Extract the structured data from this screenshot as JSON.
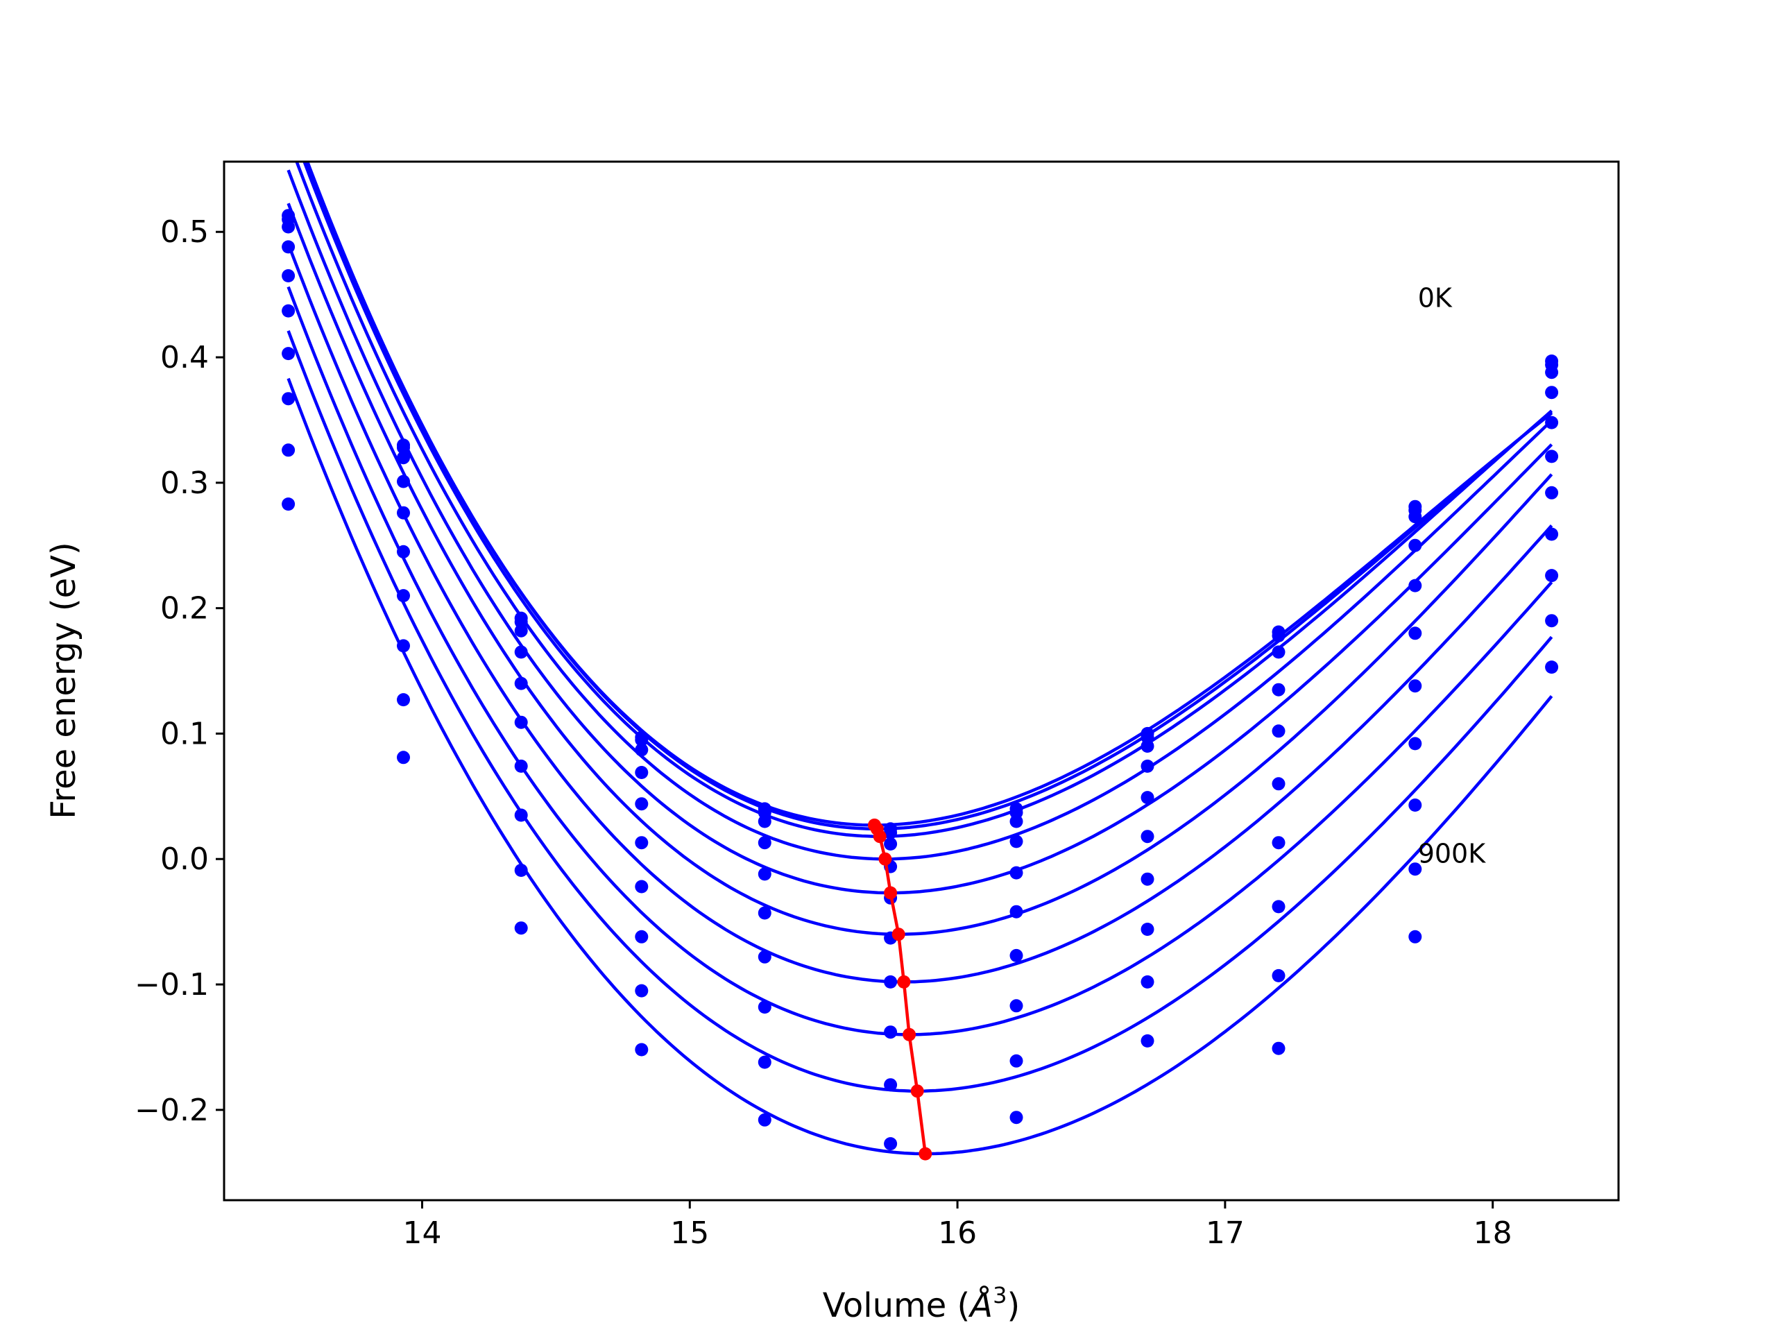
{
  "chart_data": {
    "type": "scatter",
    "title": "",
    "xlabel": "Volume (",
    "xlabel_symbol": "Å",
    "xlabel_exp": "3",
    "xlabel_close": ")",
    "ylabel": "Free energy (eV)",
    "xlim": [
      13.26,
      18.47
    ],
    "ylim": [
      -0.272,
      0.556
    ],
    "xticks": [
      14,
      15,
      16,
      17,
      18
    ],
    "xtick_labels": [
      "14",
      "15",
      "16",
      "17",
      "18"
    ],
    "yticks": [
      -0.2,
      -0.1,
      0.0,
      0.1,
      0.2,
      0.3,
      0.4,
      0.5
    ],
    "ytick_labels": [
      "−0.2",
      "−0.1",
      "0.0",
      "0.1",
      "0.2",
      "0.3",
      "0.4",
      "0.5"
    ],
    "grid": false,
    "legend": "none",
    "point_color": "#0000ff",
    "fit_color": "#0000ff",
    "minima_color": "#ff0000",
    "annotations": [
      {
        "text": "0K",
        "x": 17.72,
        "y": 0.44
      },
      {
        "text": "900K",
        "x": 17.72,
        "y": -0.003
      }
    ],
    "volumes": [
      13.5,
      13.93,
      14.37,
      14.82,
      15.28,
      15.75,
      16.22,
      16.71,
      17.2,
      17.71,
      18.22
    ],
    "series": [
      {
        "values": [
          0.513,
          0.33,
          0.192,
          0.097,
          0.04,
          0.024,
          0.04,
          0.1,
          0.181,
          0.281,
          0.397
        ]
      },
      {
        "values": [
          0.51,
          0.328,
          0.189,
          0.095,
          0.037,
          0.021,
          0.037,
          0.097,
          0.178,
          0.278,
          0.394
        ]
      },
      {
        "values": [
          0.504,
          0.32,
          0.182,
          0.087,
          0.03,
          0.012,
          0.03,
          0.09,
          0.165,
          0.273,
          0.388
        ]
      },
      {
        "values": [
          0.488,
          0.301,
          0.165,
          0.069,
          0.013,
          -0.006,
          0.014,
          0.074,
          0.135,
          0.25,
          0.372
        ]
      },
      {
        "values": [
          0.465,
          0.276,
          0.14,
          0.044,
          -0.012,
          -0.031,
          -0.011,
          0.049,
          0.102,
          0.218,
          0.348
        ]
      },
      {
        "values": [
          0.437,
          0.245,
          0.109,
          0.013,
          -0.043,
          -0.063,
          -0.042,
          0.018,
          0.06,
          0.18,
          0.321
        ]
      },
      {
        "values": [
          0.403,
          0.21,
          0.074,
          -0.022,
          -0.078,
          -0.098,
          -0.077,
          -0.016,
          0.013,
          0.138,
          0.292
        ]
      },
      {
        "values": [
          0.367,
          0.17,
          0.035,
          -0.062,
          -0.118,
          -0.138,
          -0.117,
          -0.056,
          -0.038,
          0.092,
          0.259
        ]
      },
      {
        "values": [
          0.326,
          0.127,
          -0.009,
          -0.105,
          -0.162,
          -0.18,
          -0.161,
          -0.098,
          -0.093,
          0.043,
          0.226
        ]
      },
      {
        "values": [
          0.283,
          0.081,
          -0.055,
          -0.152,
          -0.208,
          -0.227,
          -0.206,
          -0.145,
          -0.151,
          -0.008,
          0.19
        ]
      },
      {
        "values": [
          null,
          null,
          null,
          null,
          null,
          null,
          null,
          null,
          null,
          -0.062,
          0.153
        ]
      }
    ],
    "fit_curves": [
      {
        "v0": 15.69,
        "e0": 0.027,
        "a": 0.0875,
        "b": 0.0143,
        "xmax": 18.22
      },
      {
        "v0": 15.7,
        "e0": 0.024,
        "a": 0.0876,
        "b": 0.014,
        "xmax": 18.22
      },
      {
        "v0": 15.71,
        "e0": 0.018,
        "a": 0.0875,
        "b": 0.0134,
        "xmax": 18.22
      },
      {
        "v0": 15.73,
        "e0": 0.0,
        "a": 0.0875,
        "b": 0.0125,
        "xmax": 18.22
      },
      {
        "v0": 15.75,
        "e0": -0.027,
        "a": 0.0875,
        "b": 0.0117,
        "xmax": 18.22
      },
      {
        "v0": 15.78,
        "e0": -0.06,
        "a": 0.0877,
        "b": 0.0107,
        "xmax": 18.22
      },
      {
        "v0": 15.8,
        "e0": -0.098,
        "a": 0.0873,
        "b": 0.0104,
        "xmax": 18.22
      },
      {
        "v0": 15.82,
        "e0": -0.14,
        "a": 0.0871,
        "b": 0.0102,
        "xmax": 18.22
      },
      {
        "v0": 15.85,
        "e0": -0.185,
        "a": 0.0872,
        "b": 0.0096,
        "xmax": 18.22
      },
      {
        "v0": 15.88,
        "e0": -0.235,
        "a": 0.0877,
        "b": 0.009,
        "xmax": 18.22
      }
    ],
    "minima": {
      "x": [
        15.69,
        15.7,
        15.71,
        15.73,
        15.75,
        15.78,
        15.8,
        15.82,
        15.85,
        15.88
      ],
      "y": [
        0.027,
        0.024,
        0.018,
        0.0,
        -0.027,
        -0.06,
        -0.098,
        -0.14,
        -0.185,
        -0.235
      ]
    }
  }
}
